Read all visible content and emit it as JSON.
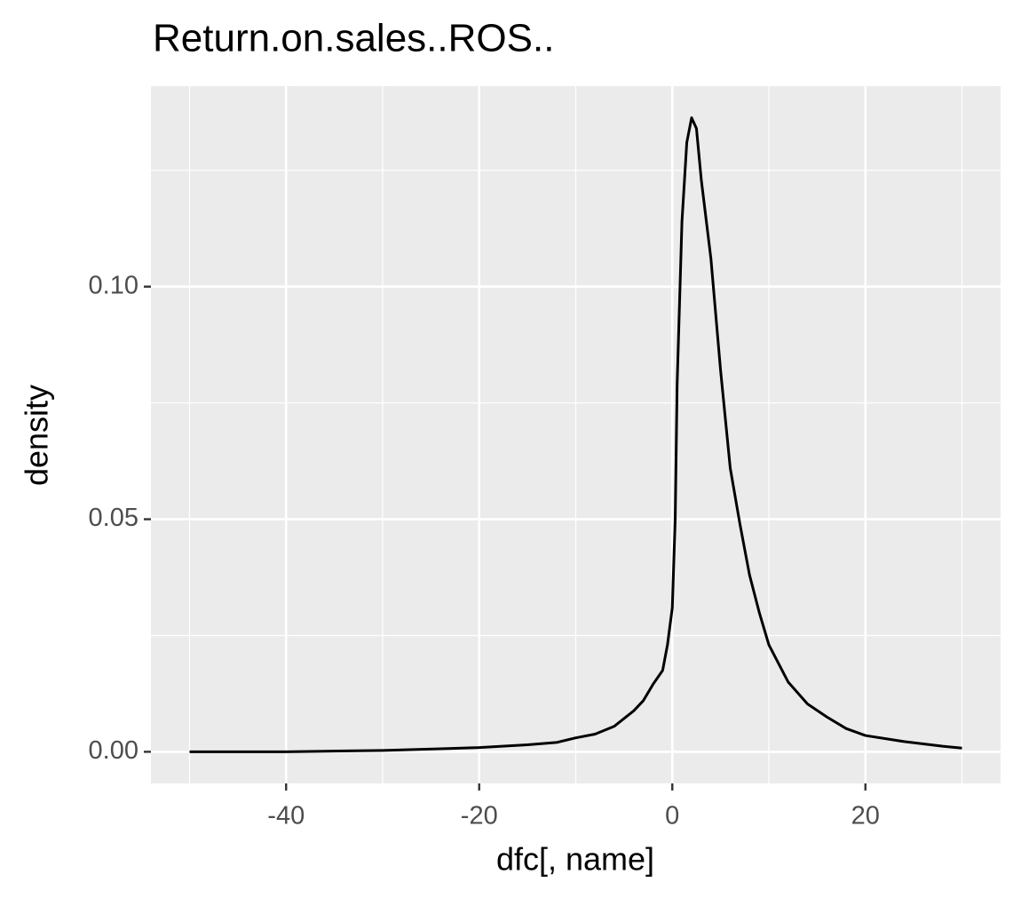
{
  "chart_data": {
    "type": "line",
    "title": "Return.on.sales..ROS..",
    "x_label": "dfc[, name]",
    "y_label": "density",
    "series": [
      {
        "color": "#000000",
        "x": [
          -50,
          -40,
          -30,
          -20,
          -15,
          -12,
          -10,
          -8,
          -6,
          -4,
          -3,
          -2,
          -1,
          -0.5,
          0,
          0.3,
          0.5,
          1,
          1.5,
          2,
          2.5,
          3,
          4,
          5,
          6,
          7,
          8,
          9,
          10,
          12,
          14,
          16,
          18,
          20,
          24,
          28,
          30
        ],
        "values": [
          0.0,
          0.0,
          0.0003,
          0.0009,
          0.0015,
          0.002,
          0.003,
          0.0038,
          0.0055,
          0.0088,
          0.011,
          0.0145,
          0.0175,
          0.023,
          0.031,
          0.05,
          0.079,
          0.114,
          0.131,
          0.1363,
          0.134,
          0.123,
          0.106,
          0.082,
          0.061,
          0.049,
          0.038,
          0.03,
          0.023,
          0.015,
          0.0103,
          0.0075,
          0.005,
          0.0035,
          0.0022,
          0.0012,
          0.0008
        ]
      }
    ],
    "xlim": [
      -54,
      34
    ],
    "xticks": [
      -40,
      -20,
      0,
      20
    ],
    "x_minor_grid": [
      -50,
      -30,
      -10,
      10,
      30
    ],
    "ylim": [
      -0.0068,
      0.1431
    ],
    "yticks": [
      {
        "value": 0,
        "label": "0.00"
      },
      {
        "value": 0.05,
        "label": "0.05"
      },
      {
        "value": 0.1,
        "label": "0.10"
      }
    ],
    "y_minor_grid": [
      0.025,
      0.075,
      0.125
    ],
    "grid": true
  }
}
